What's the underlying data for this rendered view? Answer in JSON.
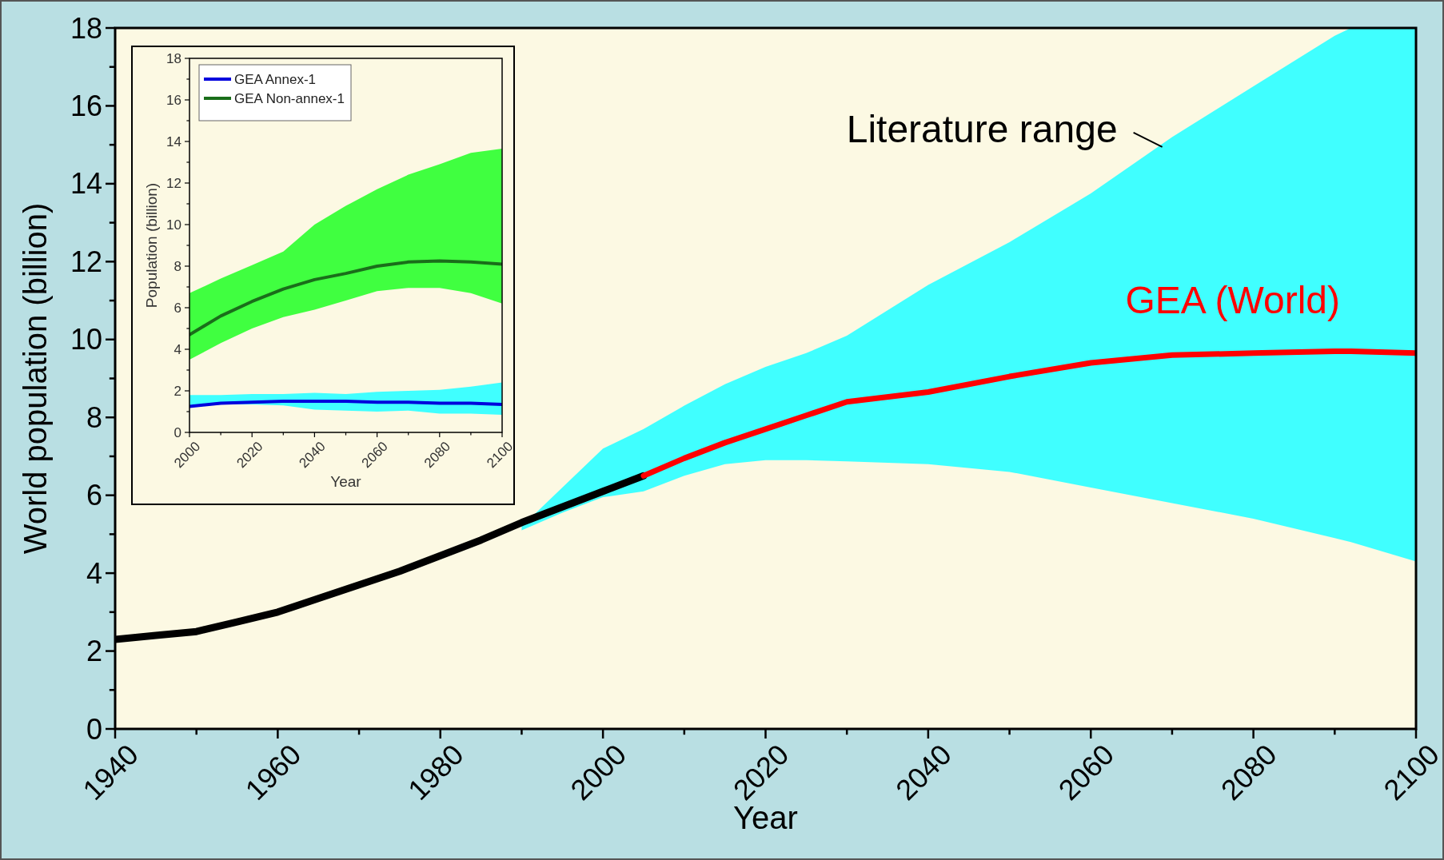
{
  "chart_data": [
    {
      "type": "line",
      "xlabel": "Year",
      "ylabel": "World population (billion)",
      "xlim": [
        1940,
        2100
      ],
      "ylim": [
        0,
        18
      ],
      "xticks": [
        1940,
        {
          "value": 1950,
          "label": null
        },
        1960,
        {
          "value": 1970,
          "label": null
        },
        1980,
        {
          "value": 1990,
          "label": null
        },
        2000,
        {
          "value": 2010,
          "label": null
        },
        2020,
        {
          "value": 2030,
          "label": null
        },
        2040,
        {
          "value": 2050,
          "label": null
        },
        2060,
        {
          "value": 2070,
          "label": null
        },
        2080,
        {
          "value": 2090,
          "label": null
        },
        2100
      ],
      "yticks": [
        0,
        {
          "value": 1,
          "label": null
        },
        2,
        {
          "value": 3,
          "label": null
        },
        4,
        {
          "value": 5,
          "label": null
        },
        6,
        {
          "value": 7,
          "label": null
        },
        8,
        {
          "value": 9,
          "label": null
        },
        10,
        {
          "value": 11,
          "label": null
        },
        12,
        {
          "value": 13,
          "label": null
        },
        14,
        {
          "value": 15,
          "label": null
        },
        16,
        {
          "value": 17,
          "label": null
        },
        18
      ],
      "grid": false,
      "legend": false,
      "line_style": "solid",
      "marker": "none",
      "annotations": [
        "Literature range"
      ],
      "series": [
        {
          "color": "#000000",
          "x": [
            1940,
            1945,
            1950,
            1955,
            1960,
            1965,
            1970,
            1975,
            1980,
            1985,
            1990,
            1995,
            2000,
            2005
          ],
          "values": [
            2.3,
            2.4,
            2.5,
            2.75,
            3.0,
            3.35,
            3.7,
            4.05,
            4.45,
            4.85,
            5.3,
            5.7,
            6.1,
            6.5
          ]
        },
        {
          "name": "GEA (World)",
          "color": "#ff0000",
          "x": [
            1990,
            1995,
            2000,
            2005,
            2010,
            2015,
            2020,
            2025,
            2030,
            2040,
            2050,
            2060,
            2070,
            2080,
            2090,
            2092,
            2100
          ],
          "values": [
            null,
            null,
            null,
            6.5,
            6.95,
            7.35,
            7.7,
            8.05,
            8.4,
            8.65,
            9.05,
            9.4,
            9.6,
            9.65,
            9.7,
            9.7,
            9.65
          ],
          "lower": [
            5.1,
            5.55,
            5.95,
            6.1,
            6.5,
            6.8,
            6.9,
            6.9,
            6.87,
            6.8,
            6.6,
            6.2,
            5.8,
            5.4,
            4.9,
            4.8,
            4.3
          ],
          "upper": [
            5.2,
            6.2,
            7.2,
            7.7,
            8.3,
            8.85,
            9.3,
            9.65,
            10.1,
            11.4,
            12.5,
            13.75,
            15.2,
            16.5,
            17.8,
            18,
            18
          ]
        }
      ]
    },
    {
      "type": "line",
      "xlabel": "Year",
      "ylabel": "Population (billion)",
      "xlim": [
        2000,
        2100
      ],
      "ylim": [
        0,
        18
      ],
      "xticks": [
        2000,
        {
          "value": 2010,
          "label": null
        },
        2020,
        {
          "value": 2030,
          "label": null
        },
        2040,
        {
          "value": 2050,
          "label": null
        },
        2060,
        {
          "value": 2070,
          "label": null
        },
        2080,
        {
          "value": 2090,
          "label": null
        },
        2100
      ],
      "yticks": [
        0,
        {
          "value": 1,
          "label": null
        },
        2,
        {
          "value": 3,
          "label": null
        },
        4,
        {
          "value": 5,
          "label": null
        },
        6,
        {
          "value": 7,
          "label": null
        },
        8,
        {
          "value": 9,
          "label": null
        },
        10,
        {
          "value": 11,
          "label": null
        },
        12,
        {
          "value": 13,
          "label": null
        },
        14,
        {
          "value": 15,
          "label": null
        },
        16,
        {
          "value": 17,
          "label": null
        },
        18
      ],
      "grid": false,
      "legend": "top left",
      "line_style": "solid",
      "marker": "none",
      "series": [
        {
          "name": "GEA Annex-1",
          "color": "#0000dd",
          "x": [
            2000,
            2010,
            2020,
            2030,
            2040,
            2050,
            2060,
            2070,
            2080,
            2090,
            2100
          ],
          "values": [
            1.25,
            1.4,
            1.45,
            1.5,
            1.5,
            1.5,
            1.45,
            1.45,
            1.4,
            1.4,
            1.35
          ],
          "lower": [
            1.2,
            1.35,
            1.35,
            1.3,
            1.1,
            1.05,
            1.0,
            1.05,
            0.9,
            0.9,
            0.85
          ],
          "upper": [
            1.8,
            1.8,
            1.85,
            1.85,
            1.9,
            1.85,
            1.95,
            2.0,
            2.05,
            2.2,
            2.4
          ]
        },
        {
          "name": "GEA Non-annex-1",
          "color": "#1a6e1a",
          "x": [
            2000,
            2010,
            2020,
            2030,
            2040,
            2050,
            2060,
            2070,
            2080,
            2090,
            2100
          ],
          "values": [
            4.7,
            5.6,
            6.3,
            6.9,
            7.35,
            7.65,
            8.0,
            8.2,
            8.25,
            8.2,
            8.1
          ],
          "lower": [
            3.5,
            4.3,
            5.0,
            5.55,
            5.9,
            6.35,
            6.8,
            6.95,
            6.95,
            6.7,
            6.2
          ],
          "upper": [
            6.7,
            7.4,
            8.05,
            8.7,
            10.0,
            10.9,
            11.7,
            12.4,
            12.9,
            13.45,
            13.65
          ]
        }
      ]
    }
  ]
}
